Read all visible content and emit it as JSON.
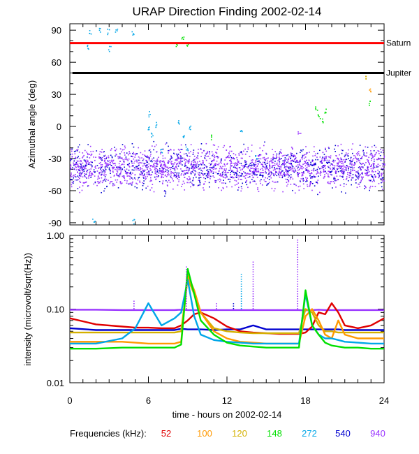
{
  "title": "URAP Direction Finding  2002-02-14",
  "xlabel": "time - hours on 2002-02-14",
  "x_ticks": [
    "0",
    "6",
    "12",
    "18",
    "24"
  ],
  "freq_label": "Frequencies (kHz):",
  "frequencies": [
    {
      "label": "52",
      "color": "#e00000"
    },
    {
      "label": "100",
      "color": "#ff9900"
    },
    {
      "label": "120",
      "color": "#d4b000"
    },
    {
      "label": "148",
      "color": "#00e000"
    },
    {
      "label": "272",
      "color": "#00a6e8"
    },
    {
      "label": "540",
      "color": "#0000d0"
    },
    {
      "label": "940",
      "color": "#9933ff"
    }
  ],
  "chart_data": [
    {
      "type": "scatter",
      "ylabel": "Azimuthal angle (deg)",
      "xlim": [
        0,
        24
      ],
      "ylim": [
        -92,
        96
      ],
      "y_ticks": [
        "90",
        "60",
        "30",
        "0",
        "-30",
        "-60",
        "-90"
      ],
      "reference_lines": [
        {
          "label": "Saturn",
          "y": 78,
          "color": "#ff0000"
        },
        {
          "label": "Jupiter",
          "y": 50,
          "color": "#000000",
          "x_start": 0.2
        }
      ],
      "band": {
        "x": [
          0,
          24
        ],
        "y_center": -38,
        "y_spread": 9,
        "series": [
          "940",
          "540"
        ]
      },
      "points": [
        {
          "series": "272",
          "x": 1.5,
          "y": 88
        },
        {
          "series": "272",
          "x": 2.2,
          "y": 90
        },
        {
          "series": "272",
          "x": 2.9,
          "y": 89
        },
        {
          "series": "272",
          "x": 3.5,
          "y": 91
        },
        {
          "series": "272",
          "x": 4.8,
          "y": 88
        },
        {
          "series": "272",
          "x": 1.4,
          "y": 74
        },
        {
          "series": "272",
          "x": 3.0,
          "y": 73
        },
        {
          "series": "148",
          "x": 8.1,
          "y": 75
        },
        {
          "series": "148",
          "x": 8.6,
          "y": 82
        },
        {
          "series": "148",
          "x": 8.9,
          "y": 78
        },
        {
          "series": "272",
          "x": 6.0,
          "y": -2
        },
        {
          "series": "272",
          "x": 6.2,
          "y": -8
        },
        {
          "series": "272",
          "x": 6.5,
          "y": 2
        },
        {
          "series": "272",
          "x": 6.1,
          "y": 12
        },
        {
          "series": "272",
          "x": 7.0,
          "y": -22
        },
        {
          "series": "272",
          "x": 8.3,
          "y": 5
        },
        {
          "series": "272",
          "x": 8.7,
          "y": -10
        },
        {
          "series": "272",
          "x": 8.9,
          "y": -20
        },
        {
          "series": "272",
          "x": 9.1,
          "y": 0
        },
        {
          "series": "272",
          "x": 13.1,
          "y": -5
        },
        {
          "series": "272",
          "x": 14.2,
          "y": -28
        },
        {
          "series": "148",
          "x": 18.8,
          "y": 18
        },
        {
          "series": "148",
          "x": 19.0,
          "y": 10
        },
        {
          "series": "148",
          "x": 19.3,
          "y": 5
        },
        {
          "series": "148",
          "x": 19.5,
          "y": 15
        },
        {
          "series": "148",
          "x": 10.7,
          "y": -10
        },
        {
          "series": "120",
          "x": 22.6,
          "y": 45
        },
        {
          "series": "100",
          "x": 22.9,
          "y": 35
        },
        {
          "series": "148",
          "x": 22.8,
          "y": 22
        },
        {
          "series": "940",
          "x": 17.5,
          "y": -5
        },
        {
          "series": "272",
          "x": 1.8,
          "y": -88
        },
        {
          "series": "272",
          "x": 4.8,
          "y": -88
        },
        {
          "series": "540",
          "x": 7.2,
          "y": -62
        }
      ]
    },
    {
      "type": "line",
      "ylabel": "intensity (microvolt/sqrt(Hz))",
      "xlim": [
        0,
        24
      ],
      "ylim": [
        0.01,
        1.0
      ],
      "yscale": "log",
      "y_ticks": [
        "1.00",
        "0.10",
        "0.01"
      ],
      "x": [
        0,
        2,
        4,
        5,
        6,
        7,
        8,
        8.5,
        9,
        9.5,
        10,
        11,
        12,
        13,
        14,
        15,
        16,
        17,
        17.5,
        18,
        18.5,
        19,
        19.5,
        20,
        20.5,
        21,
        22,
        23,
        24
      ],
      "series": [
        {
          "name": "940",
          "color": "#9933ff",
          "values": [
            0.098,
            0.098,
            0.097,
            0.097,
            0.097,
            0.097,
            0.097,
            0.098,
            0.097,
            0.097,
            0.097,
            0.097,
            0.097,
            0.097,
            0.097,
            0.097,
            0.097,
            0.097,
            0.097,
            0.096,
            0.097,
            0.098,
            0.097,
            0.097,
            0.097,
            0.097,
            0.097,
            0.097,
            0.097
          ]
        },
        {
          "name": "540",
          "color": "#0000d0",
          "values": [
            0.055,
            0.052,
            0.052,
            0.052,
            0.052,
            0.052,
            0.052,
            0.054,
            0.053,
            0.053,
            0.053,
            0.052,
            0.053,
            0.053,
            0.06,
            0.053,
            0.053,
            0.053,
            0.053,
            0.053,
            0.053,
            0.053,
            0.053,
            0.053,
            0.053,
            0.052,
            0.052,
            0.052,
            0.052
          ]
        },
        {
          "name": "52",
          "color": "#e00000",
          "values": [
            0.075,
            0.062,
            0.058,
            0.056,
            0.056,
            0.055,
            0.055,
            0.06,
            0.07,
            0.085,
            0.09,
            0.075,
            0.058,
            0.05,
            0.048,
            0.047,
            0.046,
            0.046,
            0.046,
            0.048,
            0.058,
            0.09,
            0.085,
            0.12,
            0.09,
            0.06,
            0.055,
            0.06,
            0.075
          ]
        },
        {
          "name": "120",
          "color": "#d4b000",
          "values": [
            0.048,
            0.048,
            0.048,
            0.048,
            0.048,
            0.048,
            0.048,
            0.05,
            0.26,
            0.16,
            0.09,
            0.055,
            0.05,
            0.048,
            0.047,
            0.047,
            0.047,
            0.047,
            0.047,
            0.1,
            0.09,
            0.06,
            0.05,
            0.05,
            0.048,
            0.048,
            0.048,
            0.048,
            0.048
          ]
        },
        {
          "name": "100",
          "color": "#ff9900",
          "values": [
            0.036,
            0.036,
            0.036,
            0.035,
            0.034,
            0.034,
            0.034,
            0.036,
            0.29,
            0.18,
            0.09,
            0.05,
            0.04,
            0.036,
            0.035,
            0.034,
            0.034,
            0.034,
            0.034,
            0.08,
            0.1,
            0.07,
            0.045,
            0.04,
            0.07,
            0.045,
            0.04,
            0.04,
            0.04
          ]
        },
        {
          "name": "272",
          "color": "#00a6e8",
          "values": [
            0.034,
            0.034,
            0.04,
            0.055,
            0.12,
            0.06,
            0.075,
            0.09,
            0.25,
            0.08,
            0.045,
            0.038,
            0.036,
            0.035,
            0.034,
            0.034,
            0.034,
            0.034,
            0.034,
            0.16,
            0.06,
            0.045,
            0.04,
            0.04,
            0.038,
            0.036,
            0.035,
            0.034,
            0.034
          ]
        },
        {
          "name": "148",
          "color": "#00e000",
          "values": [
            0.029,
            0.029,
            0.03,
            0.03,
            0.03,
            0.03,
            0.03,
            0.033,
            0.35,
            0.16,
            0.07,
            0.045,
            0.035,
            0.032,
            0.031,
            0.03,
            0.03,
            0.03,
            0.03,
            0.18,
            0.06,
            0.045,
            0.035,
            0.032,
            0.031,
            0.03,
            0.03,
            0.029,
            0.029
          ]
        }
      ],
      "peaks": [
        {
          "series": "940",
          "x": 4.9,
          "y": 0.13
        },
        {
          "series": "940",
          "x": 8.9,
          "y": 0.38
        },
        {
          "series": "940",
          "x": 11.2,
          "y": 0.12
        },
        {
          "series": "940",
          "x": 14.0,
          "y": 0.45
        },
        {
          "series": "940",
          "x": 17.4,
          "y": 0.9
        },
        {
          "series": "272",
          "x": 13.1,
          "y": 0.3
        },
        {
          "series": "540",
          "x": 12.5,
          "y": 0.12
        }
      ]
    }
  ]
}
